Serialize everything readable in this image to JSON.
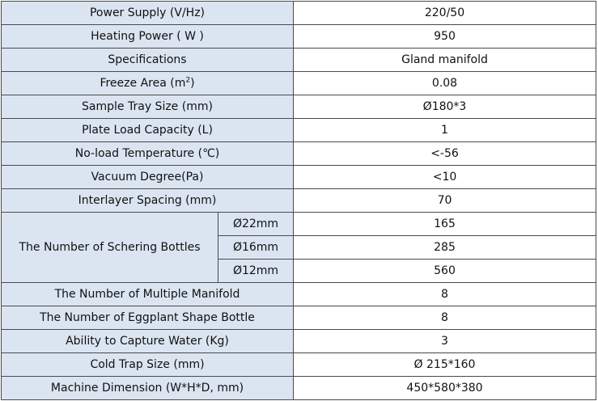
{
  "rows_before": [
    {
      "label": "Power Supply  (V/Hz)",
      "value": "220/50"
    },
    {
      "label": "Heating Power ( W )",
      "value": "950"
    },
    {
      "label": "Specifications",
      "value": "Gland manifold"
    },
    {
      "label_prefix": "Freeze Area (m",
      "label_sup": "2",
      "label_suffix": ")",
      "value": "0.08"
    },
    {
      "label": "Sample Tray Size (mm)",
      "value": "Ø180*3"
    },
    {
      "label": "Plate Load Capacity (L)",
      "value": "1"
    },
    {
      "label": "No-load Temperature (℃)",
      "value": "<-56"
    },
    {
      "label": "Vacuum Degree(Pa)",
      "value": "<10"
    },
    {
      "label": "Interlayer Spacing (mm)",
      "value": "70"
    }
  ],
  "schering": {
    "label": "The Number of Schering Bottles",
    "items": [
      {
        "size": "Ø22mm",
        "value": "165"
      },
      {
        "size": "Ø16mm",
        "value": "285"
      },
      {
        "size": "Ø12mm",
        "value": "560"
      }
    ]
  },
  "rows_after": [
    {
      "label": "The Number of Multiple Manifold",
      "value": "8"
    },
    {
      "label": "The Number of Eggplant Shape Bottle",
      "value": "8"
    },
    {
      "label": "Ability to Capture Water (Kg)",
      "value": "3"
    },
    {
      "label": "Cold Trap Size (mm)",
      "value": "Ø 215*160"
    },
    {
      "label": "Machine Dimension (W*H*D, mm)",
      "value": "450*580*380"
    }
  ]
}
